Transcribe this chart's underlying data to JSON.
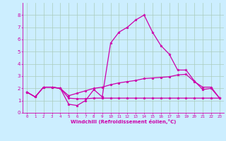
{
  "xlabel": "Windchill (Refroidissement éolien,°C)",
  "background_color": "#cceeff",
  "grid_color": "#aaccbb",
  "line_color": "#cc00aa",
  "xlim": [
    -0.5,
    23.5
  ],
  "ylim": [
    0,
    9
  ],
  "xticks": [
    0,
    1,
    2,
    3,
    4,
    5,
    6,
    7,
    8,
    9,
    10,
    11,
    12,
    13,
    14,
    15,
    16,
    17,
    18,
    19,
    20,
    21,
    22,
    23
  ],
  "yticks": [
    0,
    1,
    2,
    3,
    4,
    5,
    6,
    7,
    8
  ],
  "series": [
    {
      "x": [
        0,
        1,
        2,
        3,
        4,
        5,
        6,
        7,
        8,
        9,
        10,
        11,
        12,
        13,
        14,
        15,
        16,
        17,
        18,
        19,
        20,
        21,
        22,
        23
      ],
      "y": [
        1.7,
        1.3,
        2.1,
        2.1,
        2.0,
        0.7,
        0.6,
        1.0,
        1.9,
        1.3,
        5.7,
        6.6,
        7.0,
        7.6,
        8.0,
        6.6,
        5.5,
        4.8,
        3.5,
        3.5,
        2.6,
        1.9,
        2.0,
        1.2
      ]
    },
    {
      "x": [
        0,
        1,
        2,
        3,
        4,
        5,
        6,
        7,
        8,
        9,
        10,
        11,
        12,
        13,
        14,
        15,
        16,
        17,
        18,
        19,
        20,
        21,
        22,
        23
      ],
      "y": [
        1.7,
        1.3,
        2.1,
        2.1,
        2.0,
        1.4,
        1.6,
        1.8,
        2.0,
        2.1,
        2.3,
        2.45,
        2.55,
        2.65,
        2.8,
        2.85,
        2.9,
        2.95,
        3.1,
        3.15,
        2.55,
        2.1,
        2.1,
        1.2
      ]
    },
    {
      "x": [
        0,
        1,
        2,
        3,
        4,
        5,
        6,
        7,
        8,
        9,
        10,
        11,
        12,
        13,
        14,
        15,
        16,
        17,
        18,
        19,
        20,
        21,
        22,
        23
      ],
      "y": [
        1.7,
        1.3,
        2.1,
        2.1,
        2.0,
        1.2,
        1.15,
        1.15,
        1.2,
        1.2,
        1.2,
        1.2,
        1.2,
        1.2,
        1.2,
        1.2,
        1.2,
        1.2,
        1.2,
        1.2,
        1.2,
        1.2,
        1.2,
        1.2
      ]
    }
  ]
}
